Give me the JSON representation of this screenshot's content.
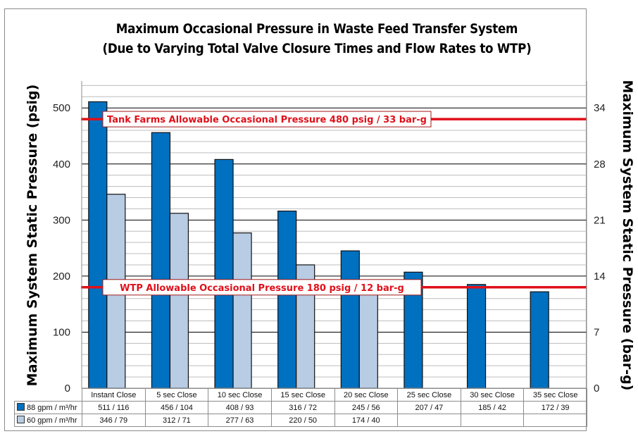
{
  "chart_data": {
    "type": "bar",
    "title": "Maximum Occasional Pressure in Waste Feed Transfer System",
    "subtitle": "(Due to Varying Total Valve Closure Times and Flow Rates to WTP)",
    "ylabel": "Maximum System Static Pressure (psig)",
    "ylabel_right": "Maximum System Static Pressure (bar-g)",
    "xlabel": "",
    "ylim": [
      0,
      548
    ],
    "yticks": [
      0,
      100,
      200,
      300,
      400,
      500
    ],
    "yticks_right": [
      {
        "label": "0",
        "psig": 0
      },
      {
        "label": "7",
        "psig": 100
      },
      {
        "label": "14",
        "psig": 200
      },
      {
        "label": "21",
        "psig": 300
      },
      {
        "label": "28",
        "psig": 400
      },
      {
        "label": "34",
        "psig": 500
      }
    ],
    "minor_grid_step": 20,
    "major_grid_step": 100,
    "grid": true,
    "legend_placement": "data-table-bottom",
    "categories": [
      "Instant Close",
      "5 sec Close",
      "10 sec Close",
      "15 sec Close",
      "20 sec Close",
      "25 sec Close",
      "30 sec Close",
      "35 sec Close"
    ],
    "series": [
      {
        "name": "88 gpm / m³/hr",
        "color": "#0070c0",
        "values": [
          511,
          456,
          408,
          316,
          245,
          207,
          185,
          172
        ],
        "table_labels": [
          "511 / 116",
          "456 / 104",
          "408 / 93",
          "316 / 72",
          "245 / 56",
          "207 / 47",
          "185 / 42",
          "172 / 39"
        ]
      },
      {
        "name": "60 gpm / m³/hr",
        "color": "#b8cce4",
        "values": [
          346,
          312,
          277,
          220,
          174,
          null,
          null,
          null
        ],
        "table_labels": [
          "346 / 79",
          "312 / 71",
          "277 / 63",
          "220 / 50",
          "174 / 40",
          "",
          "",
          ""
        ]
      }
    ],
    "reference_lines": [
      {
        "value": 480,
        "label": "Tank Farms Allowable Occasional Pressure 480 psig / 33 bar-g",
        "color": "#e0101a"
      },
      {
        "value": 180,
        "label": "WTP Allowable Occasional Pressure 180 psig / 12 bar-g",
        "color": "#e0101a"
      }
    ]
  }
}
